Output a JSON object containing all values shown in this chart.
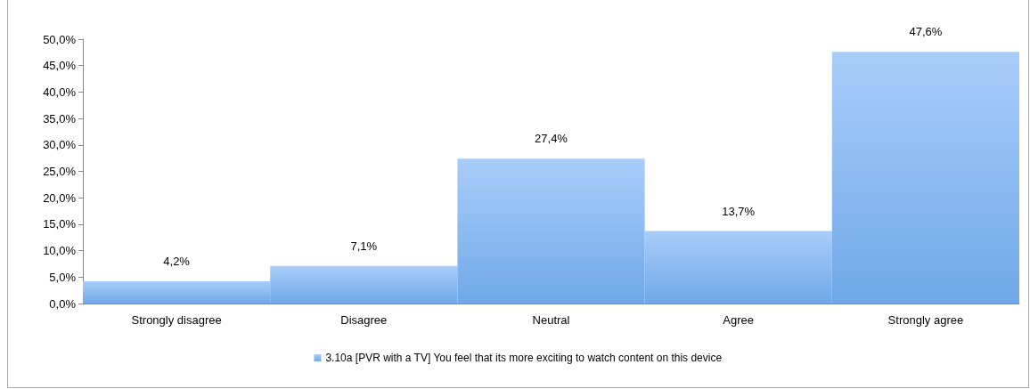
{
  "chart_data": {
    "type": "bar",
    "categories": [
      "Strongly disagree",
      "Disagree",
      "Neutral",
      "Agree",
      "Strongly agree"
    ],
    "series": [
      {
        "name": "3.10a [PVR with a TV] You feel that its more exciting to watch content on this device",
        "color": "#6fa8e8",
        "values": [
          4.2,
          7.1,
          27.4,
          13.7,
          47.6
        ],
        "value_labels": [
          "4,2%",
          "7,1%",
          "27,4%",
          "13,7%",
          "47,6%"
        ]
      }
    ],
    "ylim": [
      0,
      50
    ],
    "yticks": [
      {
        "value": 0,
        "label": "0,0%"
      },
      {
        "value": 5,
        "label": "5,0%"
      },
      {
        "value": 10,
        "label": "10,0%"
      },
      {
        "value": 15,
        "label": "15,0%"
      },
      {
        "value": 20,
        "label": "20,0%"
      },
      {
        "value": 25,
        "label": "25,0%"
      },
      {
        "value": 30,
        "label": "30,0%"
      },
      {
        "value": 35,
        "label": "35,0%"
      },
      {
        "value": 40,
        "label": "40,0%"
      },
      {
        "value": 45,
        "label": "45,0%"
      },
      {
        "value": 50,
        "label": "50,0%"
      }
    ],
    "grid": false,
    "legend": "bottom"
  }
}
